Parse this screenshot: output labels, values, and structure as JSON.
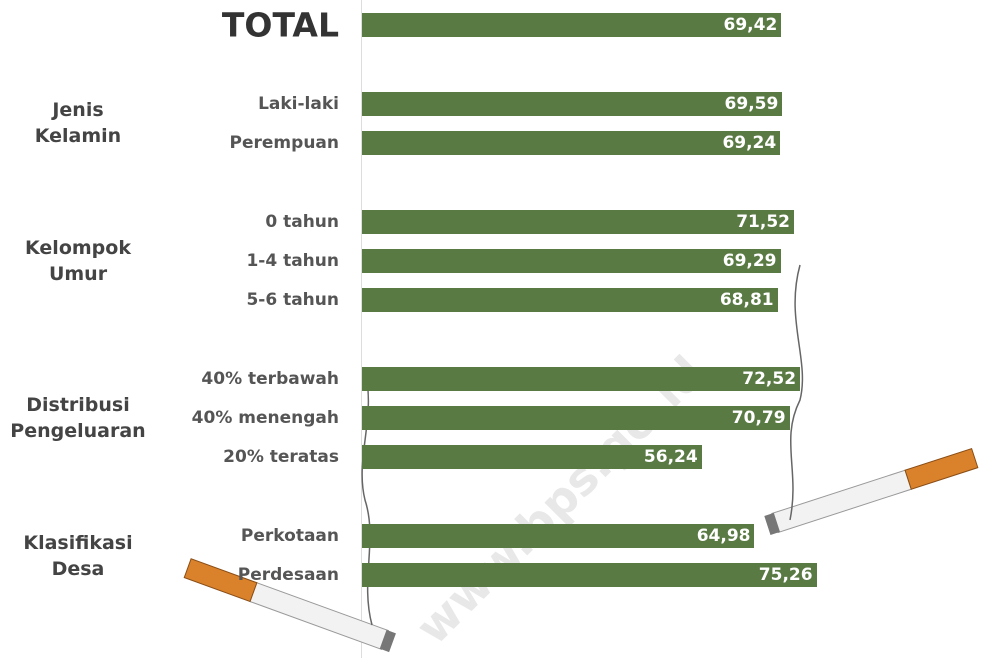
{
  "chart_data": {
    "type": "bar",
    "orientation": "horizontal",
    "color": "#5a7a44",
    "watermark": "www.bps.go.id",
    "groups": [
      {
        "categories": [
          "TOTAL"
        ],
        "values": [
          69.42
        ],
        "value_labels": [
          "69,42"
        ]
      },
      {
        "name": "Jenis Kelamin",
        "categories": [
          "Laki-laki",
          "Perempuan"
        ],
        "values": [
          69.59,
          69.24
        ],
        "value_labels": [
          "69,59",
          "69,24"
        ]
      },
      {
        "name": "Kelompok Umur",
        "categories": [
          "0 tahun",
          "1-4 tahun",
          "5-6 tahun"
        ],
        "values": [
          71.52,
          69.29,
          68.81
        ],
        "value_labels": [
          "71,52",
          "69,29",
          "68,81"
        ]
      },
      {
        "name": "Distribusi Pengeluaran",
        "categories": [
          "40% terbawah",
          "40% menengah",
          "20% teratas"
        ],
        "values": [
          72.52,
          70.79,
          56.24
        ],
        "value_labels": [
          "72,52",
          "70,79",
          "56,24"
        ]
      },
      {
        "name": "Klasifikasi Desa",
        "categories": [
          "Perkotaan",
          "Perdesaan"
        ],
        "values": [
          64.98,
          75.26
        ],
        "value_labels": [
          "64,98",
          "75,26"
        ]
      }
    ]
  }
}
